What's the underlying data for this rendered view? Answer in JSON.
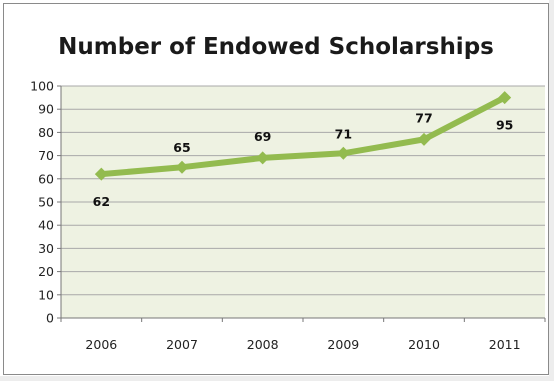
{
  "chart_data": {
    "type": "line",
    "title": "Number of Endowed Scholarships",
    "xlabel": "",
    "ylabel": "",
    "categories": [
      "2006",
      "2007",
      "2008",
      "2009",
      "2010",
      "2011"
    ],
    "series": [
      {
        "values": [
          62,
          65,
          69,
          71,
          77,
          95
        ],
        "color": "#93bb4f"
      }
    ],
    "data_labels": [
      "62",
      "65",
      "69",
      "71",
      "77",
      "95"
    ],
    "ylim": [
      0,
      100
    ],
    "yticks": [
      0,
      10,
      20,
      30,
      40,
      50,
      60,
      70,
      80,
      90,
      100
    ],
    "grid": true,
    "legend": "none",
    "plot_background": "#eef2e2",
    "grid_color": "#a8a8a8"
  }
}
